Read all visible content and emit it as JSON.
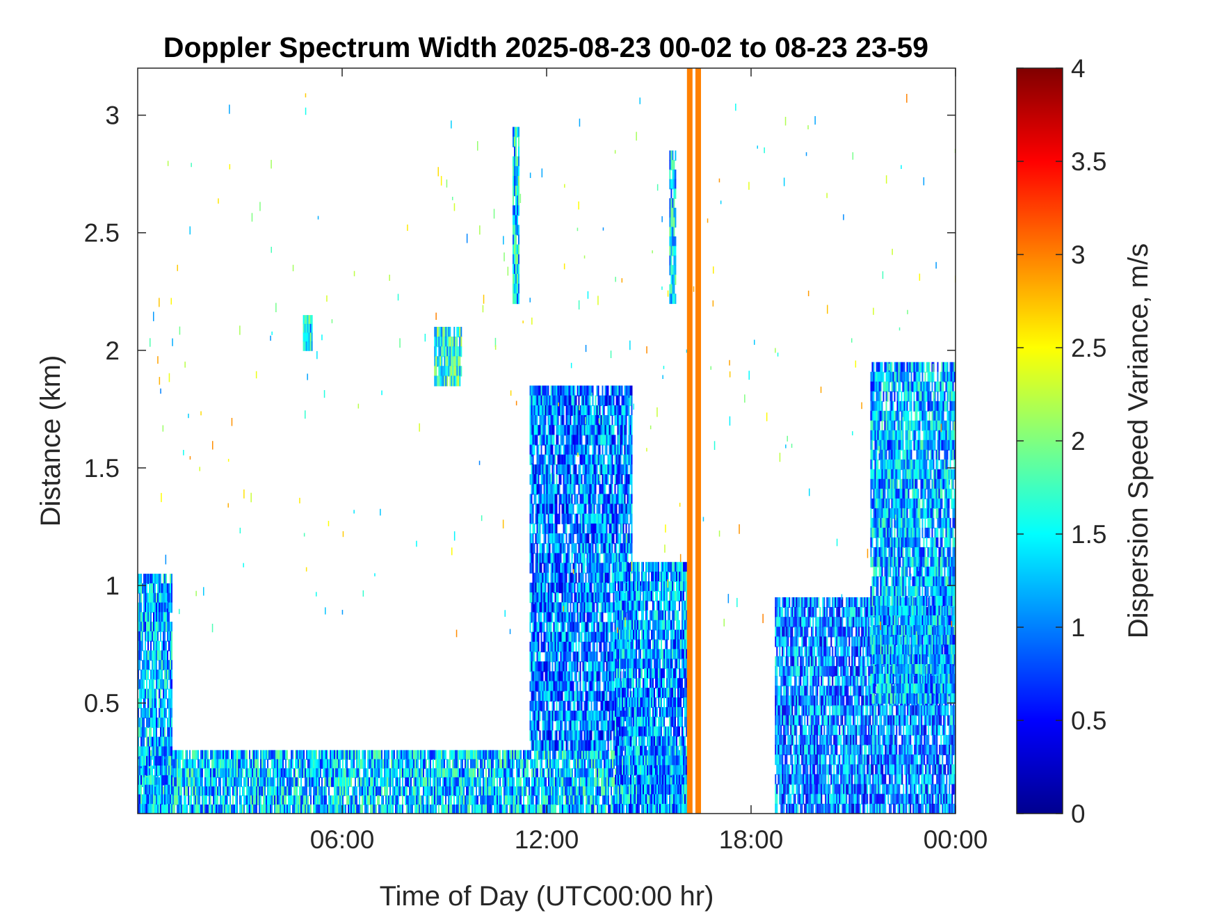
{
  "chart_data": {
    "type": "heatmap",
    "title": "Doppler Spectrum Width 2025-08-23 00-02 to 08-23 23-59",
    "xlabel": "Time of Day (UTC00:00 hr)",
    "ylabel": "Distance (km)",
    "x_unit": "hours UTC",
    "xlim": [
      0,
      24
    ],
    "ylim": [
      0.03,
      3.2
    ],
    "x_ticks": [
      {
        "value": 6,
        "label": "06:00"
      },
      {
        "value": 12,
        "label": "12:00"
      },
      {
        "value": 18,
        "label": "18:00"
      },
      {
        "value": 24,
        "label": "00:00"
      }
    ],
    "y_ticks": [
      {
        "value": 0.5,
        "label": "0.5"
      },
      {
        "value": 1,
        "label": "1"
      },
      {
        "value": 1.5,
        "label": "1.5"
      },
      {
        "value": 2,
        "label": "2"
      },
      {
        "value": 2.5,
        "label": "2.5"
      },
      {
        "value": 3,
        "label": "3"
      }
    ],
    "colorbar": {
      "label": "Dispersion Speed Variance, m/s",
      "colormap": "jet",
      "range": [
        0,
        4
      ],
      "ticks": [
        {
          "value": 0,
          "label": "0"
        },
        {
          "value": 0.5,
          "label": "0.5"
        },
        {
          "value": 1,
          "label": "1"
        },
        {
          "value": 1.5,
          "label": "1.5"
        },
        {
          "value": 2,
          "label": "2"
        },
        {
          "value": 2.5,
          "label": "2.5"
        },
        {
          "value": 3,
          "label": "3"
        },
        {
          "value": 3.5,
          "label": "3.5"
        },
        {
          "value": 4,
          "label": "4"
        }
      ]
    },
    "grid": false,
    "legend": "colorbar right",
    "regions": [
      {
        "name": "surface layer",
        "time_start": 0,
        "time_end": 16.1,
        "height_bottom": 0.03,
        "height_top": 0.3,
        "value_approx": 1.3
      },
      {
        "name": "early morning layer",
        "time_start": 0,
        "time_end": 1.0,
        "height_bottom": 0.03,
        "height_top": 1.05,
        "value_approx": 1.2
      },
      {
        "name": "midday convective column",
        "time_start": 11.5,
        "time_end": 14.5,
        "height_bottom": 0.3,
        "height_top": 1.85,
        "value_approx": 1.0
      },
      {
        "name": "afternoon boundary layer",
        "time_start": 14.0,
        "time_end": 16.1,
        "height_bottom": 0.03,
        "height_top": 1.1,
        "value_approx": 1.1
      },
      {
        "name": "evening layer",
        "time_start": 18.7,
        "time_end": 24,
        "height_bottom": 0.03,
        "height_top": 0.95,
        "value_approx": 1.0
      },
      {
        "name": "late evening column",
        "time_start": 21.5,
        "time_end": 24,
        "height_bottom": 0.5,
        "height_top": 1.95,
        "value_approx": 1.2
      },
      {
        "name": "elevated patch 09:00",
        "time_start": 8.7,
        "time_end": 9.5,
        "height_bottom": 1.85,
        "height_top": 2.1,
        "value_approx": 1.6
      },
      {
        "name": "elevated patch 05:00",
        "time_start": 4.85,
        "time_end": 5.1,
        "height_bottom": 2.0,
        "height_top": 2.15,
        "value_approx": 1.5
      },
      {
        "name": "high streak 11:00",
        "time_start": 11.0,
        "time_end": 11.2,
        "height_bottom": 2.2,
        "height_top": 2.95,
        "value_approx": 1.4
      },
      {
        "name": "high streak 15:40",
        "time_start": 15.6,
        "time_end": 15.8,
        "height_bottom": 2.2,
        "height_top": 2.85,
        "value_approx": 1.4
      }
    ],
    "missing_data_bars": [
      {
        "time": 16.2,
        "value": 3.0
      },
      {
        "time": 16.45,
        "value": 3.0
      }
    ]
  }
}
